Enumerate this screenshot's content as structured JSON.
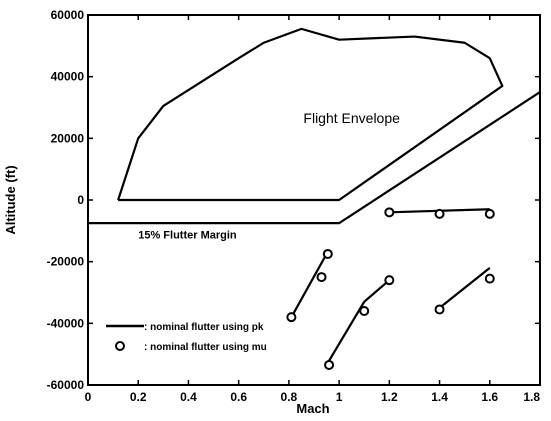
{
  "chart_data": {
    "type": "line",
    "title": "",
    "xlabel": "Mach",
    "ylabel": "Altitude (ft)",
    "xlim": [
      0,
      1.8
    ],
    "ylim": [
      -60000,
      60000
    ],
    "xticks": [
      0,
      0.2,
      0.4,
      0.6,
      0.8,
      1,
      1.2,
      1.4,
      1.6,
      1.8
    ],
    "xtick_labels": [
      "0",
      "0.2",
      "0.4",
      "0.6",
      "0.8",
      "1",
      "1.2",
      "1.4",
      "1.6",
      "1.8"
    ],
    "yticks": [
      -60000,
      -40000,
      -20000,
      0,
      20000,
      40000,
      60000
    ],
    "ytick_labels": [
      "-60000",
      "-40000",
      "-20000",
      "0",
      "20000",
      "40000",
      "60000"
    ],
    "grid": false,
    "legend_position": "bottom-left",
    "annotations": [
      {
        "text": "Flight Envelope",
        "x": 1.05,
        "y": 25000
      },
      {
        "text": "15% Flutter Margin",
        "x": 0.2,
        "y": -12500
      }
    ],
    "envelope": {
      "x": [
        0.12,
        0.2,
        0.3,
        0.6,
        0.7,
        0.85,
        1.0,
        1.3,
        1.5,
        1.6,
        1.65,
        1.0,
        0.12
      ],
      "y": [
        0,
        20000,
        30500,
        46000,
        51000,
        55500,
        52000,
        53000,
        51000,
        46000,
        37000,
        0,
        0
      ]
    },
    "margin_line": {
      "x": [
        0,
        1.0,
        1.8
      ],
      "y": [
        -7500,
        -7500,
        35000
      ]
    },
    "series": [
      {
        "name": ": nominal flutter using pk",
        "style": "line",
        "segments": [
          {
            "x": [
              0.81,
              0.95
            ],
            "y": [
              -38000,
              -17500
            ]
          },
          {
            "x": [
              0.95,
              1.1
            ],
            "y": [
              -53500,
              -33000
            ]
          },
          {
            "x": [
              1.1,
              1.2
            ],
            "y": [
              -33000,
              -26000
            ]
          },
          {
            "x": [
              1.2,
              1.6
            ],
            "y": [
              -4000,
              -3000
            ]
          },
          {
            "x": [
              1.4,
              1.6
            ],
            "y": [
              -35000,
              -22000
            ]
          }
        ]
      },
      {
        "name": ": nominal flutter using mu",
        "style": "marker",
        "points": [
          {
            "x": 0.81,
            "y": -38000
          },
          {
            "x": 0.93,
            "y": -25000
          },
          {
            "x": 0.955,
            "y": -17500
          },
          {
            "x": 0.96,
            "y": -53500
          },
          {
            "x": 1.1,
            "y": -36000
          },
          {
            "x": 1.2,
            "y": -26000
          },
          {
            "x": 1.2,
            "y": -4000
          },
          {
            "x": 1.4,
            "y": -4500
          },
          {
            "x": 1.6,
            "y": -4500
          },
          {
            "x": 1.4,
            "y": -35500
          },
          {
            "x": 1.6,
            "y": -25500
          }
        ]
      }
    ]
  }
}
